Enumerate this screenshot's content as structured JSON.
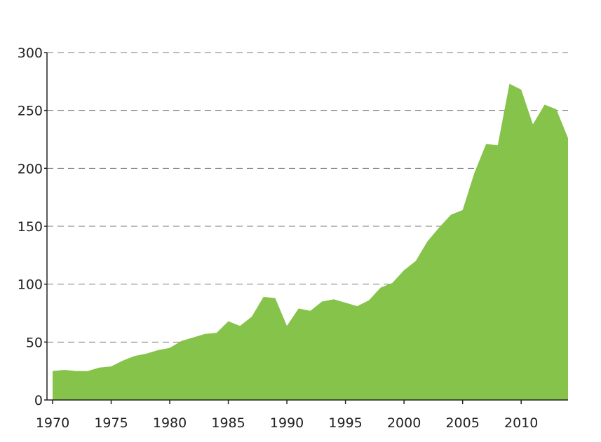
{
  "chart_data": {
    "type": "area",
    "title": "",
    "xlabel": "",
    "ylabel": "",
    "x": [
      1970,
      1971,
      1972,
      1973,
      1974,
      1975,
      1976,
      1977,
      1978,
      1979,
      1980,
      1981,
      1982,
      1983,
      1984,
      1985,
      1986,
      1987,
      1988,
      1989,
      1990,
      1991,
      1992,
      1993,
      1994,
      1995,
      1996,
      1997,
      1998,
      1999,
      2000,
      2001,
      2002,
      2003,
      2004,
      2005,
      2006,
      2007,
      2008,
      2009,
      2010,
      2011,
      2012,
      2013,
      2014
    ],
    "series": [
      {
        "values": [
          25,
          26,
          25,
          25,
          28,
          29,
          34,
          38,
          40,
          43,
          45,
          51,
          54,
          57,
          58,
          68,
          64,
          72,
          89,
          88,
          64,
          79,
          77,
          85,
          87,
          84,
          81,
          86,
          97,
          101,
          112,
          120,
          137,
          149,
          160,
          164,
          196,
          221,
          220,
          273,
          268,
          238,
          255,
          251,
          226
        ]
      }
    ],
    "xlim": [
      1970,
      2014
    ],
    "ylim": [
      0,
      300
    ],
    "xticks": [
      "1970",
      "1975",
      "1980",
      "1985",
      "1990",
      "1995",
      "2000",
      "2005",
      "2010"
    ],
    "yticks": [
      "0",
      "50",
      "100",
      "150",
      "200",
      "250",
      "300"
    ],
    "grid": true,
    "legend": "none",
    "colors": {
      "fill": "#86c34a",
      "grid": "#777777",
      "axis": "#222222",
      "text": "#222222"
    }
  }
}
